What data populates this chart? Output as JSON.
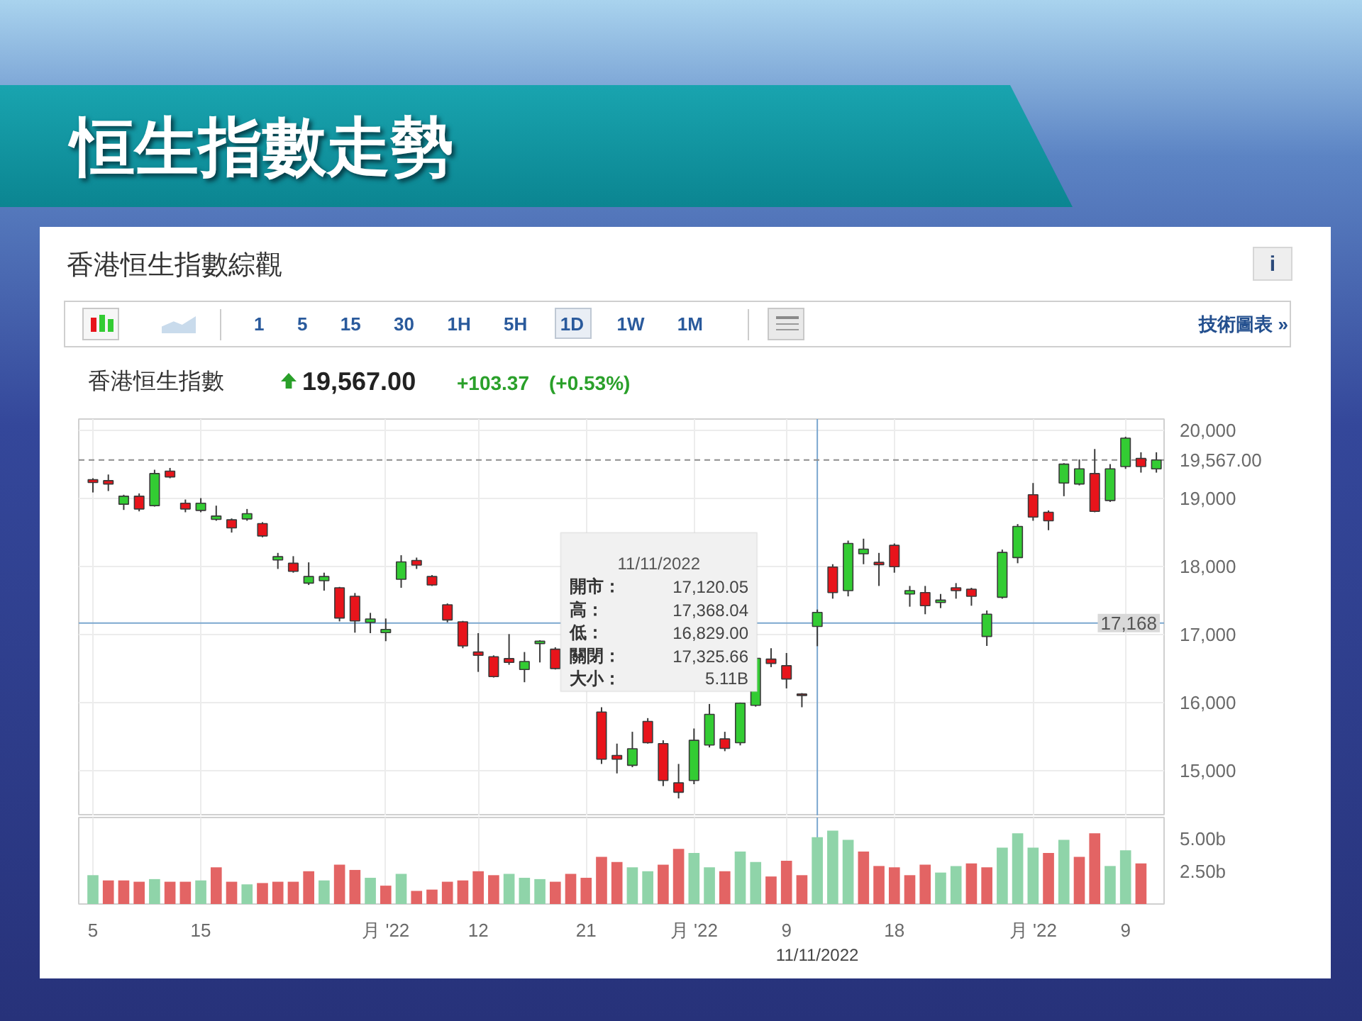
{
  "chart_data": [
    {
      "type": "candlestick",
      "title": "恒生指數走勢",
      "subtitle": "香港恒生指數綜觀",
      "categories": [
        null,
        null,
        null,
        null,
        null,
        null,
        null,
        null,
        null,
        null,
        null,
        null,
        null,
        null,
        null,
        null,
        null,
        null,
        null,
        null,
        null,
        null,
        null,
        null,
        null,
        null,
        null,
        null,
        null,
        null,
        null,
        null,
        null,
        null,
        null,
        null,
        null,
        null,
        null,
        null,
        null,
        null,
        null,
        null,
        null,
        null,
        null,
        null,
        null,
        null,
        null,
        null,
        null,
        null,
        null,
        null,
        null,
        null,
        null,
        null,
        null,
        null,
        null,
        null,
        null,
        null,
        null,
        null,
        null,
        null
      ],
      "ohlc": [
        [
          19278,
          19299,
          19090,
          19236
        ],
        [
          19264,
          19354,
          19111,
          19215
        ],
        [
          18917,
          19056,
          18833,
          19035
        ],
        [
          19035,
          19076,
          18812,
          18847
        ],
        [
          18896,
          19424,
          18882,
          19368
        ],
        [
          19403,
          19451,
          19299,
          19319
        ],
        [
          18931,
          18986,
          18799,
          18847
        ],
        [
          18826,
          19007,
          18799,
          18931
        ],
        [
          18694,
          18896,
          18674,
          18743
        ],
        [
          18688,
          18708,
          18500,
          18569
        ],
        [
          18701,
          18847,
          18674,
          18778
        ],
        [
          18632,
          18653,
          18431,
          18451
        ],
        [
          18097,
          18201,
          17965,
          18146
        ],
        [
          18049,
          18153,
          17910,
          17931
        ],
        [
          17757,
          18062,
          17729,
          17854
        ],
        [
          17792,
          17910,
          17646,
          17854
        ],
        [
          17688,
          17701,
          17194,
          17243
        ],
        [
          17563,
          17611,
          17028,
          17201
        ],
        [
          17180,
          17319,
          17021,
          17229
        ],
        [
          17028,
          17236,
          16903,
          17076
        ],
        [
          17813,
          18167,
          17688,
          18069
        ],
        [
          18090,
          18132,
          17965,
          18021
        ],
        [
          17854,
          17875,
          17715,
          17729
        ],
        [
          17438,
          17458,
          17180,
          17215
        ],
        [
          17187,
          17201,
          16799,
          16833
        ],
        [
          16743,
          17021,
          16451,
          16694
        ],
        [
          16674,
          16694,
          16368,
          16382
        ],
        [
          16646,
          17007,
          16556,
          16590
        ],
        [
          16486,
          16743,
          16299,
          16604
        ],
        [
          16868,
          16917,
          16590,
          16903
        ],
        [
          16785,
          16813,
          16486,
          16500
        ],
        null,
        null,
        [
          15861,
          15931,
          15097,
          15167
        ],
        [
          15222,
          15396,
          14958,
          15167
        ],
        [
          15077,
          15570,
          15049,
          15320
        ],
        [
          15722,
          15771,
          15396,
          15410
        ],
        [
          15396,
          15445,
          14771,
          14854
        ],
        [
          14819,
          15097,
          14590,
          14681
        ],
        [
          14854,
          15618,
          14799,
          15445
        ],
        [
          15375,
          15979,
          15340,
          15826
        ],
        [
          15465,
          15570,
          15285,
          15326
        ],
        [
          15410,
          16000,
          15370,
          15990
        ],
        [
          15960,
          16680,
          15940,
          16650
        ],
        [
          16639,
          16799,
          16521,
          16576
        ],
        [
          16542,
          16729,
          16208,
          16347
        ],
        [
          16125,
          16139,
          15931,
          16104
        ],
        [
          17120.05,
          17368.04,
          16829.0,
          17325.66
        ],
        [
          17993,
          18035,
          17528,
          17618
        ],
        [
          17646,
          18382,
          17562,
          18340
        ],
        [
          18188,
          18410,
          18035,
          18257
        ],
        [
          18062,
          18201,
          17715,
          18028
        ],
        [
          18312,
          18340,
          17910,
          17998
        ],
        [
          17597,
          17715,
          17410,
          17646
        ],
        [
          17618,
          17715,
          17299,
          17424
        ],
        [
          17472,
          17597,
          17389,
          17507
        ],
        [
          17688,
          17757,
          17528,
          17646
        ],
        [
          17667,
          17688,
          17424,
          17563
        ],
        [
          16972,
          17354,
          16833,
          17299
        ],
        [
          17549,
          18250,
          17528,
          18208
        ],
        [
          18132,
          18625,
          18049,
          18590
        ],
        [
          19056,
          19229,
          18674,
          18729
        ],
        [
          18799,
          18826,
          18535,
          18674
        ],
        [
          19229,
          19521,
          19035,
          19507
        ],
        [
          19215,
          19576,
          19194,
          19437
        ],
        [
          19368,
          19729,
          18799,
          18812
        ],
        [
          18972,
          19507,
          18951,
          19437
        ],
        [
          19472,
          19910,
          19437,
          19889
        ],
        [
          19590,
          19681,
          19382,
          19472
        ],
        [
          19437,
          19681,
          19382,
          19567
        ]
      ],
      "colors": [
        "#e8141b",
        "#e8141b",
        "#33cc33",
        "#e8141b",
        "#33cc33",
        "#e8141b",
        "#e8141b",
        "#33cc33",
        "#33cc33",
        "#e8141b",
        "#33cc33",
        "#e8141b",
        "#33cc33",
        "#e8141b",
        "#33cc33",
        "#33cc33",
        "#e8141b",
        "#e8141b",
        "#33cc33",
        "#33cc33",
        "#33cc33",
        "#e8141b",
        "#e8141b",
        "#e8141b",
        "#e8141b",
        "#e8141b",
        "#e8141b",
        "#e8141b",
        "#33cc33",
        "#33cc33",
        "#e8141b",
        null,
        null,
        "#e8141b",
        "#e8141b",
        "#33cc33",
        "#e8141b",
        "#e8141b",
        "#e8141b",
        "#33cc33",
        "#33cc33",
        "#e8141b",
        "#33cc33",
        "#33cc33",
        "#e8141b",
        "#e8141b",
        "#e8141b",
        "#33cc33",
        "#e8141b",
        "#33cc33",
        "#33cc33",
        "#e8141b",
        "#e8141b",
        "#33cc33",
        "#e8141b",
        "#33cc33",
        "#e8141b",
        "#e8141b",
        "#33cc33",
        "#33cc33",
        "#33cc33",
        "#e8141b",
        "#e8141b",
        "#33cc33",
        "#33cc33",
        "#e8141b",
        "#33cc33",
        "#33cc33",
        "#e8141b",
        "#33cc33"
      ],
      "ylim": [
        14330,
        20170
      ],
      "yticks": [
        {
          "value": 15000,
          "label": "15,000"
        },
        {
          "value": 16000,
          "label": "16,000"
        },
        {
          "value": 17000,
          "label": "17,000"
        },
        {
          "value": 18000,
          "label": "18,000"
        },
        {
          "value": 19000,
          "label": "19,000"
        },
        {
          "value": 20000,
          "label": "20,000"
        }
      ],
      "grid": true,
      "tick_labels": "y",
      "ref_lines": [
        {
          "axis": "y",
          "value": 19567,
          "label": "19,567.00",
          "color": "#8c8c8c",
          "line_style": "dashed"
        },
        {
          "axis": "y",
          "value": 17168,
          "label": "17,168",
          "color": "#7ba7cf"
        }
      ],
      "annotations": [
        "i",
        "1 5 15 30 1H 5H 1D 1W 1M",
        "技術圖表 »",
        "香港恒生指數",
        "19,567.00",
        "+103.37",
        "(+0.53%)",
        "11/11/2022",
        "開市：",
        "17,120.05",
        "高：",
        "17,368.04",
        "低：",
        "16,829.00",
        "關閉：",
        "17,325.66",
        "大小：",
        "5.11B"
      ]
    },
    {
      "type": "bar",
      "categories": [
        "5",
        null,
        null,
        null,
        null,
        null,
        null,
        "15",
        null,
        null,
        null,
        null,
        null,
        null,
        null,
        null,
        null,
        null,
        null,
        "月 '22",
        null,
        null,
        null,
        null,
        null,
        "12",
        null,
        null,
        null,
        null,
        null,
        null,
        "21",
        null,
        null,
        null,
        null,
        null,
        null,
        "月 '22",
        null,
        null,
        null,
        null,
        null,
        "9",
        null,
        "11/11/2022",
        null,
        null,
        null,
        null,
        "18",
        null,
        null,
        null,
        null,
        null,
        null,
        null,
        null,
        "月 '22",
        null,
        null,
        null,
        null,
        null,
        "9",
        null,
        null
      ],
      "values": [
        2.2,
        1.8,
        1.8,
        1.7,
        1.9,
        1.7,
        1.7,
        1.8,
        2.8,
        1.7,
        1.5,
        1.6,
        1.7,
        1.7,
        2.5,
        1.8,
        3.0,
        2.6,
        2.0,
        1.4,
        2.3,
        1.0,
        1.1,
        1.7,
        1.8,
        2.5,
        2.2,
        2.3,
        2.0,
        1.9,
        1.7,
        2.3,
        2.0,
        3.6,
        3.2,
        2.8,
        2.5,
        3.0,
        4.2,
        3.9,
        2.8,
        2.5,
        4.0,
        3.2,
        2.1,
        3.3,
        2.2,
        5.1,
        5.6,
        4.9,
        4.0,
        2.9,
        2.8,
        2.2,
        3.0,
        2.4,
        2.9,
        3.1,
        2.8,
        4.3,
        5.4,
        4.3,
        3.9,
        4.9,
        3.6,
        5.4,
        2.9,
        4.1,
        3.1,
        null
      ],
      "colors": [
        "#8fd4a9",
        "#e36464",
        "#e36464",
        "#e36464",
        "#8fd4a9",
        "#e36464",
        "#e36464",
        "#8fd4a9",
        "#e36464",
        "#e36464",
        "#8fd4a9",
        "#e36464",
        "#e36464",
        "#e36464",
        "#e36464",
        "#8fd4a9",
        "#e36464",
        "#e36464",
        "#8fd4a9",
        "#e36464",
        "#8fd4a9",
        "#e36464",
        "#e36464",
        "#e36464",
        "#e36464",
        "#e36464",
        "#e36464",
        "#8fd4a9",
        "#8fd4a9",
        "#8fd4a9",
        "#e36464",
        "#e36464",
        "#e36464",
        "#e36464",
        "#e36464",
        "#8fd4a9",
        "#8fd4a9",
        "#e36464",
        "#e36464",
        "#8fd4a9",
        "#8fd4a9",
        "#e36464",
        "#8fd4a9",
        "#8fd4a9",
        "#e36464",
        "#e36464",
        "#e36464",
        "#8fd4a9",
        "#8fd4a9",
        "#8fd4a9",
        "#e36464",
        "#e36464",
        "#e36464",
        "#e36464",
        "#e36464",
        "#8fd4a9",
        "#8fd4a9",
        "#e36464",
        "#e36464",
        "#8fd4a9",
        "#8fd4a9",
        "#8fd4a9",
        "#e36464",
        "#8fd4a9",
        "#e36464",
        "#e36464",
        "#8fd4a9",
        "#8fd4a9",
        "#e36464",
        null
      ],
      "ylim": [
        0,
        6.6
      ],
      "yticks": [
        {
          "value": 2.5,
          "label": "2.50b"
        },
        {
          "value": 5,
          "label": "5.00b"
        }
      ],
      "grid": "x",
      "ref_lines": [
        {
          "axis": "x",
          "value": "11/11/2022",
          "color": "#7ba7cf"
        }
      ]
    }
  ]
}
